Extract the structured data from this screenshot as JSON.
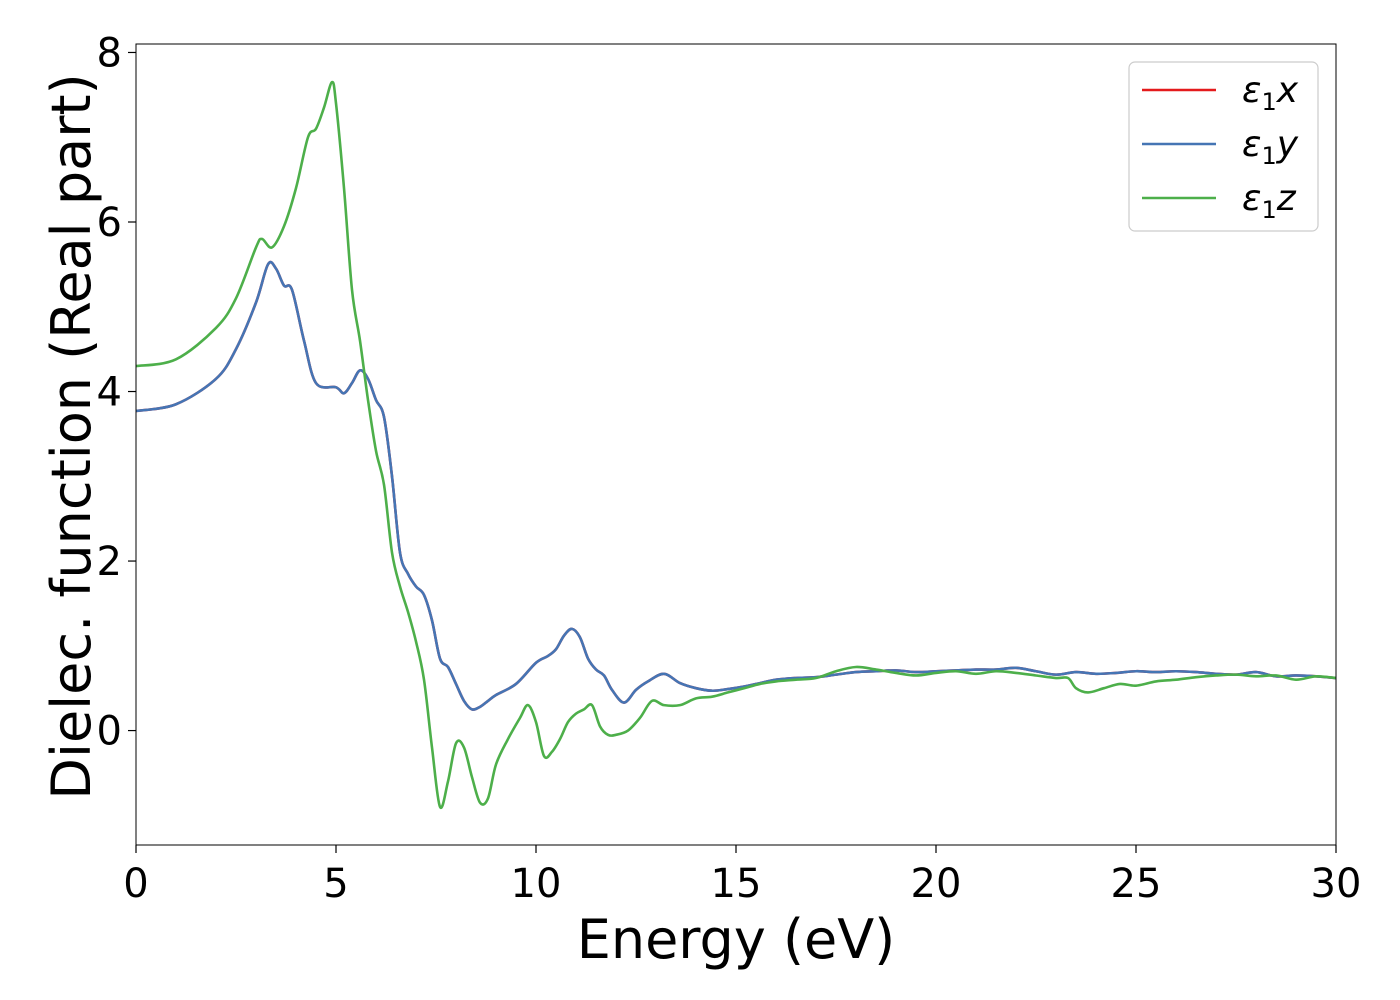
{
  "chart_data": {
    "type": "line",
    "title": "",
    "xlabel": "Energy (eV)",
    "ylabel": "Dielec. function (Real part)",
    "xlim": [
      0,
      30
    ],
    "ylim": [
      -1.35,
      8.1
    ],
    "xticks": [
      0,
      5,
      10,
      15,
      20,
      25,
      30
    ],
    "yticks": [
      0,
      2,
      4,
      6,
      8
    ],
    "grid": false,
    "legend_position": "top-right",
    "series": [
      {
        "name": "ε1x",
        "legend_base": "ε",
        "legend_sub": "1",
        "legend_suffix": "x",
        "color": "#e41a1c",
        "x": [
          0,
          1,
          2,
          2.5,
          3,
          3.3,
          3.5,
          3.7,
          3.9,
          4.2,
          4.5,
          5,
          5.2,
          5.4,
          5.6,
          5.8,
          6,
          6.2,
          6.4,
          6.6,
          6.8,
          7,
          7.2,
          7.4,
          7.6,
          7.8,
          8,
          8.2,
          8.4,
          8.6,
          8.8,
          9,
          9.5,
          10,
          10.3,
          10.5,
          10.7,
          10.9,
          11.1,
          11.3,
          11.5,
          11.7,
          11.9,
          12.2,
          12.5,
          12.8,
          13.2,
          13.6,
          14,
          14.4,
          14.8,
          15.2,
          15.6,
          16,
          16.5,
          17,
          17.5,
          18,
          18.5,
          19,
          19.5,
          20,
          20.5,
          21,
          21.5,
          22,
          22.5,
          23,
          23.5,
          24,
          24.5,
          25,
          25.5,
          26,
          26.5,
          27,
          27.5,
          28,
          28.5,
          29,
          29.5,
          30
        ],
        "y": [
          3.77,
          3.85,
          4.15,
          4.5,
          5.05,
          5.5,
          5.45,
          5.25,
          5.2,
          4.6,
          4.1,
          4.05,
          3.98,
          4.1,
          4.25,
          4.15,
          3.9,
          3.7,
          3,
          2.1,
          1.85,
          1.7,
          1.6,
          1.3,
          0.85,
          0.75,
          0.55,
          0.35,
          0.25,
          0.28,
          0.35,
          0.42,
          0.55,
          0.8,
          0.88,
          0.96,
          1.12,
          1.2,
          1.1,
          0.85,
          0.72,
          0.65,
          0.48,
          0.33,
          0.48,
          0.58,
          0.67,
          0.56,
          0.5,
          0.47,
          0.49,
          0.52,
          0.56,
          0.6,
          0.62,
          0.63,
          0.66,
          0.69,
          0.7,
          0.71,
          0.69,
          0.7,
          0.71,
          0.72,
          0.72,
          0.74,
          0.7,
          0.66,
          0.69,
          0.67,
          0.68,
          0.7,
          0.69,
          0.7,
          0.69,
          0.67,
          0.66,
          0.69,
          0.64,
          0.65,
          0.64,
          0.62
        ]
      },
      {
        "name": "ε1y",
        "legend_base": "ε",
        "legend_sub": "1",
        "legend_suffix": "y",
        "color": "#4575b4",
        "x": [
          0,
          1,
          2,
          2.5,
          3,
          3.3,
          3.5,
          3.7,
          3.9,
          4.2,
          4.5,
          5,
          5.2,
          5.4,
          5.6,
          5.8,
          6,
          6.2,
          6.4,
          6.6,
          6.8,
          7,
          7.2,
          7.4,
          7.6,
          7.8,
          8,
          8.2,
          8.4,
          8.6,
          8.8,
          9,
          9.5,
          10,
          10.3,
          10.5,
          10.7,
          10.9,
          11.1,
          11.3,
          11.5,
          11.7,
          11.9,
          12.2,
          12.5,
          12.8,
          13.2,
          13.6,
          14,
          14.4,
          14.8,
          15.2,
          15.6,
          16,
          16.5,
          17,
          17.5,
          18,
          18.5,
          19,
          19.5,
          20,
          20.5,
          21,
          21.5,
          22,
          22.5,
          23,
          23.5,
          24,
          24.5,
          25,
          25.5,
          26,
          26.5,
          27,
          27.5,
          28,
          28.5,
          29,
          29.5,
          30
        ],
        "y": [
          3.77,
          3.85,
          4.15,
          4.5,
          5.05,
          5.5,
          5.45,
          5.25,
          5.2,
          4.6,
          4.1,
          4.05,
          3.98,
          4.1,
          4.25,
          4.15,
          3.9,
          3.7,
          3,
          2.1,
          1.85,
          1.7,
          1.6,
          1.3,
          0.85,
          0.75,
          0.55,
          0.35,
          0.25,
          0.28,
          0.35,
          0.42,
          0.55,
          0.8,
          0.88,
          0.96,
          1.12,
          1.2,
          1.1,
          0.85,
          0.72,
          0.65,
          0.48,
          0.33,
          0.48,
          0.58,
          0.67,
          0.56,
          0.5,
          0.47,
          0.49,
          0.52,
          0.56,
          0.6,
          0.62,
          0.63,
          0.66,
          0.69,
          0.7,
          0.71,
          0.69,
          0.7,
          0.71,
          0.72,
          0.72,
          0.74,
          0.7,
          0.66,
          0.69,
          0.67,
          0.68,
          0.7,
          0.69,
          0.7,
          0.69,
          0.67,
          0.66,
          0.69,
          0.64,
          0.65,
          0.64,
          0.62
        ]
      },
      {
        "name": "ε1z",
        "legend_base": "ε",
        "legend_sub": "1",
        "legend_suffix": "z",
        "color": "#4daf4a",
        "x": [
          0,
          1,
          2,
          2.5,
          3,
          3.15,
          3.4,
          3.7,
          4,
          4.3,
          4.5,
          4.7,
          4.9,
          5,
          5.2,
          5.4,
          5.6,
          5.8,
          6,
          6.2,
          6.4,
          6.6,
          6.8,
          7,
          7.2,
          7.4,
          7.6,
          7.8,
          8,
          8.2,
          8.4,
          8.6,
          8.8,
          9,
          9.3,
          9.6,
          9.8,
          10,
          10.2,
          10.4,
          10.6,
          10.8,
          11,
          11.2,
          11.4,
          11.6,
          11.8,
          12,
          12.3,
          12.6,
          12.9,
          13.2,
          13.6,
          14,
          14.4,
          14.8,
          15.2,
          15.6,
          16,
          16.5,
          17,
          17.5,
          18,
          18.5,
          19,
          19.5,
          20,
          20.5,
          21,
          21.5,
          22,
          22.5,
          23,
          23.3,
          23.5,
          23.8,
          24.2,
          24.6,
          25,
          25.5,
          26,
          26.5,
          27,
          27.5,
          28,
          28.5,
          29,
          29.5,
          30
        ],
        "y": [
          4.3,
          4.38,
          4.75,
          5.1,
          5.7,
          5.8,
          5.7,
          5.95,
          6.4,
          7,
          7.1,
          7.35,
          7.65,
          7.4,
          6.4,
          5.2,
          4.6,
          3.9,
          3.3,
          2.9,
          2.1,
          1.7,
          1.4,
          1.05,
          0.6,
          -0.2,
          -0.9,
          -0.6,
          -0.15,
          -0.2,
          -0.55,
          -0.85,
          -0.8,
          -0.4,
          -0.1,
          0.15,
          0.3,
          0.1,
          -0.3,
          -0.25,
          -0.1,
          0.1,
          0.2,
          0.25,
          0.3,
          0.05,
          -0.05,
          -0.05,
          0,
          0.15,
          0.35,
          0.3,
          0.3,
          0.38,
          0.4,
          0.45,
          0.5,
          0.55,
          0.58,
          0.6,
          0.62,
          0.7,
          0.75,
          0.72,
          0.68,
          0.65,
          0.68,
          0.7,
          0.67,
          0.7,
          0.68,
          0.65,
          0.62,
          0.62,
          0.5,
          0.45,
          0.5,
          0.55,
          0.53,
          0.58,
          0.6,
          0.63,
          0.65,
          0.66,
          0.64,
          0.65,
          0.6,
          0.64,
          0.62
        ]
      }
    ]
  }
}
